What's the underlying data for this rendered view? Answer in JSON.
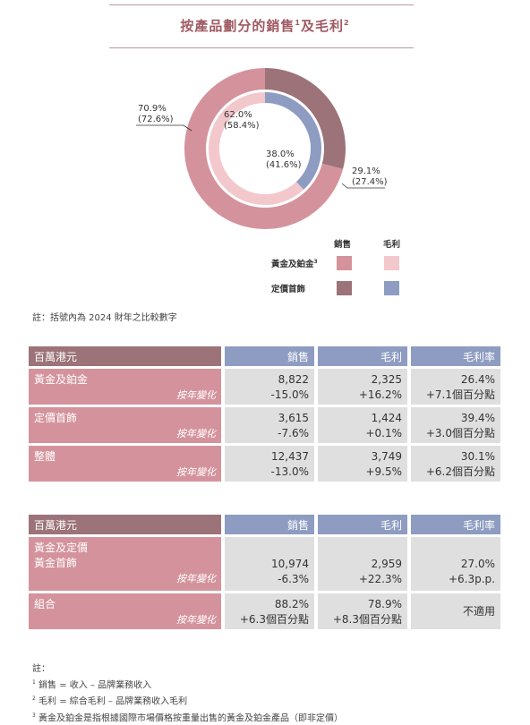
{
  "title": {
    "text": "按產品劃分的銷售",
    "sup1": "1",
    "mid": "及毛利",
    "sup2": "2"
  },
  "donut": {
    "outer_a": "70.9%",
    "outer_a_prev": "(72.6%)",
    "outer_b": "29.1%",
    "outer_b_prev": "(27.4%)",
    "inner_a": "62.0%",
    "inner_a_prev": "(58.4%)",
    "inner_b": "38.0%",
    "inner_b_prev": "(41.6%)"
  },
  "chart_data": {
    "type": "pie",
    "series": [
      {
        "name": "銷售",
        "categories": [
          "黃金及鉑金",
          "定價首飾"
        ],
        "values": [
          70.9,
          29.1
        ],
        "previous": [
          72.6,
          27.4
        ]
      },
      {
        "name": "毛利",
        "categories": [
          "黃金及鉑金",
          "定價首飾"
        ],
        "values": [
          62.0,
          38.0
        ],
        "previous": [
          58.4,
          41.6
        ]
      }
    ],
    "colors": {
      "sales_gold": "#d4939c",
      "profit_gold": "#f2c8cd",
      "sales_fixed": "#9c7378",
      "profit_fixed": "#8e9cc2"
    }
  },
  "legend": {
    "col_sales": "銷售",
    "col_profit": "毛利",
    "row_gold": "黃金及鉑金",
    "row_gold_sup": "3",
    "row_fixed": "定價首飾"
  },
  "note": "註：括號內為 2024 財年之比較數字",
  "table1": {
    "header": [
      "百萬港元",
      "銷售",
      "毛利",
      "毛利率"
    ],
    "rows": [
      {
        "name": "黃金及鉑金",
        "yoy": "按年變化",
        "sales": "8,822",
        "sales_chg": "-15.0%",
        "gp": "2,325",
        "gp_chg": "+16.2%",
        "gm": "26.4%",
        "gm_chg": "+7.1個百分點"
      },
      {
        "name": "定價首飾",
        "yoy": "按年變化",
        "sales": "3,615",
        "sales_chg": "-7.6%",
        "gp": "1,424",
        "gp_chg": "+0.1%",
        "gm": "39.4%",
        "gm_chg": "+3.0個百分點"
      },
      {
        "name": "整體",
        "yoy": "按年變化",
        "sales": "12,437",
        "sales_chg": "-13.0%",
        "gp": "3,749",
        "gp_chg": "+9.5%",
        "gm": "30.1%",
        "gm_chg": "+6.2個百分點"
      }
    ]
  },
  "table2": {
    "header": [
      "百萬港元",
      "銷售",
      "毛利",
      "毛利率"
    ],
    "rows": [
      {
        "name1": "黃金及定價",
        "name2": "黃金首飾",
        "yoy": "按年變化",
        "sales": "10,974",
        "sales_chg": "-6.3%",
        "gp": "2,959",
        "gp_chg": "+22.3%",
        "gm": "27.0%",
        "gm_chg": "+6.3p.p."
      },
      {
        "name1": "組合",
        "yoy": "按年變化",
        "sales": "88.2%",
        "sales_chg": "+6.3個百分點",
        "gp": "78.9%",
        "gp_chg": "+8.3個百分點",
        "gm": "不適用"
      }
    ]
  },
  "footnotes": {
    "head": "註：",
    "n1_mark": "1",
    "n1": "銷售 = 收入 – 品牌業務收入",
    "n2_mark": "2",
    "n2": "毛利 = 綜合毛利 – 品牌業務收入毛利",
    "n3_mark": "3",
    "n3": "黃金及鉑金是指根據國際市場價格按重量出售的黃金及鉑金產品（即非定價）"
  }
}
